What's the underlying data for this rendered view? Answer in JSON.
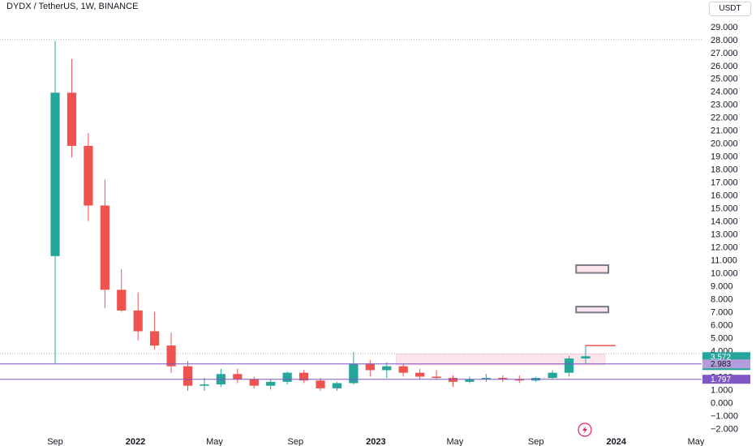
{
  "header": {
    "title": "DYDX / TetherUS, 1W, BINANCE",
    "currency": "USDT"
  },
  "colors": {
    "up": "#26a69a",
    "down": "#ef5350",
    "purple": "#7e57c2",
    "zone_fill": "#fce4ec",
    "box_border": "#787b86",
    "axis_text": "#131722"
  },
  "icons": {
    "lightning": "lightning-bolt-icon"
  },
  "chart_data": {
    "type": "candlestick",
    "ylim": [
      -2.6,
      29.8
    ],
    "y_ticks": [
      -2,
      -1,
      0,
      1,
      2,
      3,
      4,
      5,
      6,
      7,
      8,
      9,
      10,
      11,
      12,
      13,
      14,
      15,
      16,
      17,
      18,
      19,
      20,
      21,
      22,
      23,
      24,
      25,
      26,
      27,
      28,
      29
    ],
    "y_tick_labels": [
      "−2.000",
      "−1.000",
      "0.000",
      "1.000",
      "2.000",
      "3.000",
      "4.000",
      "5.000",
      "6.000",
      "7.000",
      "8.000",
      "9.000",
      "10.000",
      "11.000",
      "12.000",
      "13.000",
      "14.000",
      "15.000",
      "16.000",
      "17.000",
      "18.000",
      "19.000",
      "20.000",
      "21.000",
      "22.000",
      "23.000",
      "24.000",
      "25.000",
      "26.000",
      "27.000",
      "28.000",
      "29.000"
    ],
    "x_labels": [
      {
        "label": "Sep",
        "date": "2021-09-01",
        "bold": false
      },
      {
        "label": "2022",
        "date": "2022-01-01",
        "bold": true
      },
      {
        "label": "May",
        "date": "2022-05-01",
        "bold": false
      },
      {
        "label": "Sep",
        "date": "2022-09-01",
        "bold": false
      },
      {
        "label": "2023",
        "date": "2023-01-01",
        "bold": true
      },
      {
        "label": "May",
        "date": "2023-05-01",
        "bold": false
      },
      {
        "label": "Sep",
        "date": "2023-09-01",
        "bold": false
      },
      {
        "label": "2024",
        "date": "2024-01-01",
        "bold": true
      },
      {
        "label": "May",
        "date": "2024-05-01",
        "bold": false
      }
    ],
    "candles": [
      [
        11.3,
        27.9,
        2.98,
        23.9
      ],
      [
        23.9,
        26.5,
        18.9,
        19.8
      ],
      [
        19.8,
        20.8,
        14.0,
        15.2
      ],
      [
        15.2,
        17.2,
        7.3,
        8.7
      ],
      [
        8.7,
        10.3,
        7.0,
        7.1
      ],
      [
        7.1,
        8.5,
        4.8,
        5.5
      ],
      [
        5.5,
        7.0,
        4.1,
        4.4
      ],
      [
        4.4,
        5.4,
        2.3,
        2.8
      ],
      [
        2.8,
        3.2,
        0.9,
        1.3
      ],
      [
        1.3,
        1.9,
        0.9,
        1.4
      ],
      [
        1.4,
        2.6,
        1.2,
        2.2
      ],
      [
        2.2,
        2.6,
        1.5,
        1.8
      ],
      [
        1.8,
        2.0,
        1.1,
        1.3
      ],
      [
        1.3,
        1.8,
        1.0,
        1.6
      ],
      [
        1.6,
        2.4,
        1.4,
        2.3
      ],
      [
        2.3,
        2.5,
        1.5,
        1.7
      ],
      [
        1.7,
        1.9,
        0.9,
        1.1
      ],
      [
        1.1,
        1.6,
        0.9,
        1.5
      ],
      [
        1.5,
        3.9,
        1.4,
        3.0
      ],
      [
        3.0,
        3.3,
        2.0,
        2.5
      ],
      [
        2.5,
        3.1,
        1.9,
        2.8
      ],
      [
        2.8,
        3.0,
        2.0,
        2.3
      ],
      [
        2.3,
        2.6,
        1.8,
        2.0
      ],
      [
        2.0,
        2.5,
        1.8,
        1.9
      ],
      [
        1.9,
        2.1,
        1.2,
        1.6
      ],
      [
        1.6,
        2.0,
        1.5,
        1.8
      ],
      [
        1.8,
        2.2,
        1.6,
        1.9
      ],
      [
        1.9,
        2.1,
        1.6,
        1.8
      ],
      [
        1.8,
        2.1,
        1.5,
        1.7
      ],
      [
        1.7,
        2.0,
        1.6,
        1.9
      ],
      [
        1.9,
        2.5,
        1.8,
        2.3
      ],
      [
        2.3,
        3.6,
        2.0,
        3.4
      ],
      [
        3.4,
        4.4,
        3.0,
        3.57
      ]
    ],
    "horizontal_lines": [
      {
        "price": 2.983,
        "color": "#7e57c2",
        "label": "2.983"
      },
      {
        "price": 1.797,
        "color": "#7e57c2",
        "label": "1.797"
      }
    ],
    "dotted_lines": [
      28.0,
      3.77
    ],
    "zones": [
      {
        "x_start": "2023-02-01",
        "x_end": "2023-12-15",
        "y_low": 2.9,
        "y_high": 3.75
      }
    ],
    "boxes": [
      {
        "x_start": "2023-11-01",
        "x_end": "2023-12-20",
        "y_low": 10.0,
        "y_high": 10.6
      },
      {
        "x_start": "2023-11-01",
        "x_end": "2023-12-20",
        "y_low": 6.95,
        "y_high": 7.4
      }
    ],
    "projection_line": {
      "x_start": "2023-11-15",
      "x_end": "2023-12-31",
      "price": 4.4
    },
    "price_badges": [
      {
        "value": "3.572",
        "subtext": "1d 19h",
        "price": 3.572,
        "bg": "#26a69a",
        "fg": "#ffffff"
      },
      {
        "value": "2.983",
        "price": 2.983,
        "bg": "#b39ddb",
        "fg": "#131722"
      },
      {
        "value": "1.797",
        "price": 1.797,
        "bg": "#7e57c2",
        "fg": "#ffffff"
      }
    ]
  }
}
